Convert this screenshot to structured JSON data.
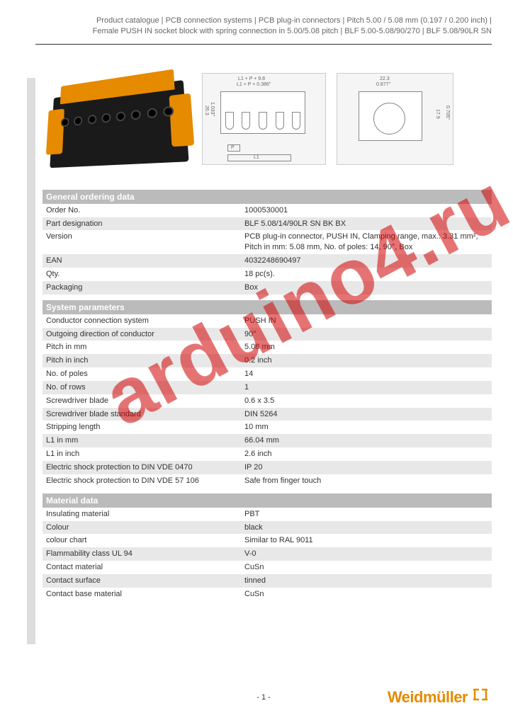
{
  "header": {
    "line1": "Product catalogue | PCB connection systems | PCB plug-in connectors | Pitch 5.00 / 5.08 mm (0.197 / 0.200 inch) |",
    "line2": "Female PUSH IN socket block with spring connection in 5.00/5.08 pitch | BLF 5.00-5.08/90/270 | BLF 5.08/90LR SN"
  },
  "watermark": "arduino4.ru",
  "sections": {
    "general": {
      "title": "General ordering data",
      "rows": [
        {
          "label": "Order No.",
          "value": "1000530001",
          "shaded": false
        },
        {
          "label": "Part designation",
          "value": "BLF 5.08/14/90LR SN BK BX",
          "shaded": true
        },
        {
          "label": "Version",
          "value": "PCB plug-in connector, PUSH IN, Clamping range, max.: 3.31 mm², Pitch in mm: 5.08 mm, No. of poles: 14, 90°, Box",
          "shaded": false
        },
        {
          "label": "EAN",
          "value": "4032248690497",
          "shaded": true
        },
        {
          "label": "Qty.",
          "value": "18 pc(s).",
          "shaded": false
        },
        {
          "label": "Packaging",
          "value": "Box",
          "shaded": true
        }
      ]
    },
    "system": {
      "title": "System parameters",
      "rows": [
        {
          "label": "Conductor connection system",
          "value": "PUSH IN",
          "shaded": false
        },
        {
          "label": "Outgoing direction of conductor",
          "value": "90°",
          "shaded": true
        },
        {
          "label": "Pitch in mm",
          "value": "5.08 mm",
          "shaded": false
        },
        {
          "label": "Pitch in inch",
          "value": "0.2 inch",
          "shaded": true
        },
        {
          "label": "No. of poles",
          "value": "14",
          "shaded": false
        },
        {
          "label": "No. of rows",
          "value": "1",
          "shaded": true
        },
        {
          "label": "Screwdriver blade",
          "value": "0.6 x 3.5",
          "shaded": false
        },
        {
          "label": "Screwdriver blade standard",
          "value": "DIN 5264",
          "shaded": true
        },
        {
          "label": "Stripping length",
          "value": "10 mm",
          "shaded": false
        },
        {
          "label": "L1 in mm",
          "value": "66.04 mm",
          "shaded": true
        },
        {
          "label": "L1 in inch",
          "value": "2.6 inch",
          "shaded": false
        },
        {
          "label": "Electric shock protection to DIN VDE 0470",
          "value": "IP 20",
          "shaded": true
        },
        {
          "label": "Electric shock protection to DIN VDE 57 106",
          "value": "Safe from finger touch",
          "shaded": false
        }
      ]
    },
    "material": {
      "title": "Material data",
      "rows": [
        {
          "label": "Insulating material",
          "value": "PBT",
          "shaded": false
        },
        {
          "label": "Colour",
          "value": "black",
          "shaded": true
        },
        {
          "label": "colour chart",
          "value": "Similar to RAL 9011",
          "shaded": false
        },
        {
          "label": "Flammability class UL 94",
          "value": "V-0",
          "shaded": true
        },
        {
          "label": "Contact material",
          "value": "CuSn",
          "shaded": false
        },
        {
          "label": "Contact surface",
          "value": "tinned",
          "shaded": true
        },
        {
          "label": "Contact base material",
          "value": "CuSn",
          "shaded": false
        }
      ]
    }
  },
  "footer": {
    "page": "- 1 -",
    "brand": "Weidmüller"
  },
  "drawing_labels": {
    "d1_top1": "L1 + P + 9.8",
    "d1_top2": "L1 + P + 0.386\"",
    "d1_side": "26.3",
    "d1_side2": "1.033\"",
    "d1_bottom_p": "P",
    "d1_bottom_l1": "L1",
    "d2_top": "22.3",
    "d2_top2": "0.877\"",
    "d2_side": "17.9",
    "d2_side2": "0.705\""
  },
  "colors": {
    "accent_orange": "#e68a00",
    "connector_black": "#1a1a1a",
    "section_header_bg": "#bbbbbb",
    "row_shade": "#e8e8e8",
    "watermark_red": "#d20000"
  }
}
